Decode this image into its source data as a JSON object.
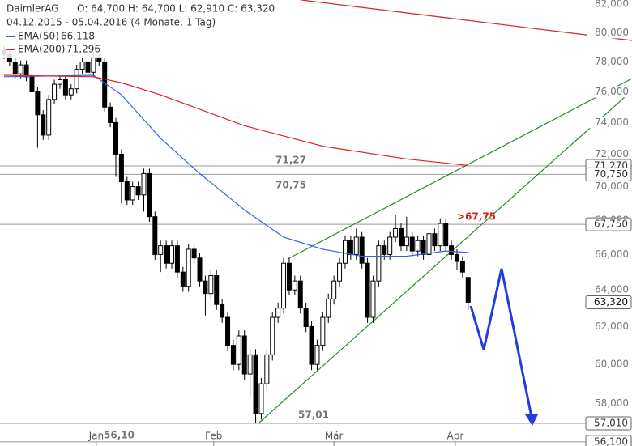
{
  "chart_data": {
    "type": "candlestick",
    "symbol": "DaimlerAG",
    "ohlc_text": "O: 64,700  H: 64,700  L: 62,910  C: 63,320",
    "period": "04.12.2015 - 05.04.2016 (4 Monate, 1 Tag)",
    "log_scale": true,
    "xlim": [
      -0.72,
      112.3
    ],
    "ylim": [
      55900,
      82300
    ],
    "xticks": [
      {
        "value": 16.5,
        "label": "Jan"
      },
      {
        "value": 37.5,
        "label": "Feb"
      },
      {
        "value": 59,
        "label": "Mär"
      },
      {
        "value": 80.7,
        "label": "Apr"
      }
    ],
    "yticks": [
      {
        "value": 58000,
        "label": "58,000"
      },
      {
        "value": 60000,
        "label": "60,000"
      },
      {
        "value": 62000,
        "label": "62,000"
      },
      {
        "value": 64000,
        "label": "64,000"
      },
      {
        "value": 66000,
        "label": "66,000"
      },
      {
        "value": 68000,
        "label": "68,000"
      },
      {
        "value": 70000,
        "label": "70,000"
      },
      {
        "value": 72000,
        "label": "72,000"
      },
      {
        "value": 74000,
        "label": "74,000"
      },
      {
        "value": 76000,
        "label": "76,000"
      },
      {
        "value": 78000,
        "label": "78,000"
      },
      {
        "value": 80000,
        "label": "80,000"
      },
      {
        "value": 82000,
        "label": "82,000"
      }
    ],
    "open": [
      78800,
      78500,
      78000,
      77200,
      77800,
      77000,
      76000,
      74500,
      73200,
      75500,
      76500,
      76800,
      75800,
      76200,
      77500,
      78000,
      77300,
      78300,
      78000,
      75000,
      74000,
      72000,
      70300,
      69200,
      70000,
      69500,
      70800,
      68200,
      66000,
      66500,
      65500,
      66500,
      65000,
      64200,
      66300,
      65800,
      64500,
      63800,
      64800,
      63200,
      62500,
      61000,
      60000,
      61500,
      59500,
      60500,
      57500,
      59000,
      60500,
      62500,
      63000,
      65500,
      64000,
      64500,
      63000,
      62000,
      60000,
      61000,
      62500,
      63500,
      64500,
      65500,
      66800,
      66000,
      67000,
      65500,
      62500,
      64500,
      66500,
      66000,
      67000,
      67500,
      66500,
      67000,
      66200,
      66800,
      66000,
      67200,
      66500,
      67800,
      66500,
      66000,
      65600,
      64700
    ],
    "high": [
      79100,
      78800,
      78300,
      78100,
      78100,
      77300,
      76300,
      74800,
      75800,
      76800,
      77100,
      77100,
      76500,
      77800,
      78300,
      78300,
      78600,
      78600,
      78300,
      75300,
      74300,
      72300,
      70600,
      70300,
      70300,
      71100,
      71100,
      68500,
      66800,
      66800,
      66800,
      66800,
      65300,
      66600,
      66600,
      66100,
      64800,
      65100,
      65100,
      63500,
      62800,
      61300,
      61800,
      61800,
      60800,
      60800,
      59300,
      60800,
      62800,
      63300,
      65800,
      65800,
      64800,
      64800,
      63300,
      62300,
      61300,
      62800,
      63800,
      64800,
      65800,
      67100,
      67100,
      67500,
      67300,
      65800,
      64800,
      66800,
      66800,
      67300,
      68300,
      67800,
      68200,
      67300,
      67100,
      67100,
      67500,
      67500,
      68100,
      68100,
      66800,
      66300,
      65900,
      64700
    ],
    "low": [
      78200,
      77700,
      76900,
      76900,
      76700,
      75700,
      72400,
      72900,
      72900,
      75200,
      76200,
      75500,
      75500,
      75900,
      77200,
      77000,
      77000,
      77700,
      74700,
      73700,
      70600,
      69000,
      68900,
      68900,
      69200,
      68500,
      67900,
      65700,
      65000,
      65200,
      65200,
      64700,
      63900,
      63900,
      65500,
      64200,
      62600,
      63500,
      62900,
      62200,
      60700,
      59700,
      59700,
      59200,
      58300,
      57010,
      57200,
      58700,
      60200,
      62200,
      62700,
      63700,
      63700,
      62700,
      61700,
      59700,
      59700,
      60700,
      62200,
      63200,
      64200,
      65200,
      65700,
      65700,
      65200,
      62200,
      62200,
      64200,
      65700,
      65700,
      66700,
      66200,
      66200,
      65900,
      65900,
      65700,
      65700,
      66200,
      66200,
      66200,
      65700,
      65100,
      64700,
      62910
    ],
    "close": [
      78500,
      78000,
      77200,
      77800,
      77000,
      76000,
      74500,
      73200,
      75500,
      76500,
      76800,
      75800,
      76200,
      77500,
      78000,
      77300,
      78300,
      78000,
      75000,
      74000,
      72000,
      70300,
      69200,
      70000,
      69500,
      70800,
      68200,
      66000,
      66500,
      65500,
      66500,
      65000,
      64200,
      66300,
      65800,
      64500,
      63800,
      64800,
      63200,
      62500,
      61000,
      60000,
      61500,
      59500,
      60500,
      57500,
      59000,
      60500,
      62500,
      63000,
      65500,
      64000,
      64500,
      63000,
      62000,
      60000,
      61000,
      62500,
      63500,
      64500,
      65500,
      66800,
      66000,
      67000,
      65500,
      62500,
      64500,
      66500,
      66000,
      67000,
      67500,
      66500,
      67000,
      66200,
      66800,
      66000,
      67200,
      66500,
      67800,
      66500,
      66000,
      65600,
      65000,
      63320
    ],
    "series": [
      {
        "name": "EMA(50)",
        "value_label": "66,118",
        "color": "#3a5fe0",
        "x": [
          0,
          16,
          21,
          28,
          35,
          43,
          50,
          57,
          64,
          72,
          79,
          83
        ],
        "values": [
          77000,
          77100,
          75800,
          73000,
          70800,
          68600,
          67000,
          66300,
          65900,
          65900,
          66200,
          66118
        ]
      },
      {
        "name": "EMA(200)",
        "value_label": "71,296",
        "color": "#e02020",
        "x": [
          0,
          16,
          21,
          28,
          43,
          57,
          72,
          83
        ],
        "values": [
          77100,
          77000,
          76600,
          75800,
          73800,
          72500,
          71700,
          71296
        ]
      }
    ],
    "levels": [
      {
        "value": 71270,
        "label": "71,270"
      },
      {
        "value": 70750,
        "label": "70,750"
      },
      {
        "value": 67750,
        "label": "67,750"
      },
      {
        "value": 57010,
        "label": "57,010"
      },
      {
        "value": 56100,
        "label": "56,100"
      }
    ],
    "price_label": {
      "value": 63320,
      "label": "63,320"
    },
    "annotations": [
      "71,27",
      "70,75",
      ">67,75",
      "57,01",
      "56,10"
    ]
  }
}
